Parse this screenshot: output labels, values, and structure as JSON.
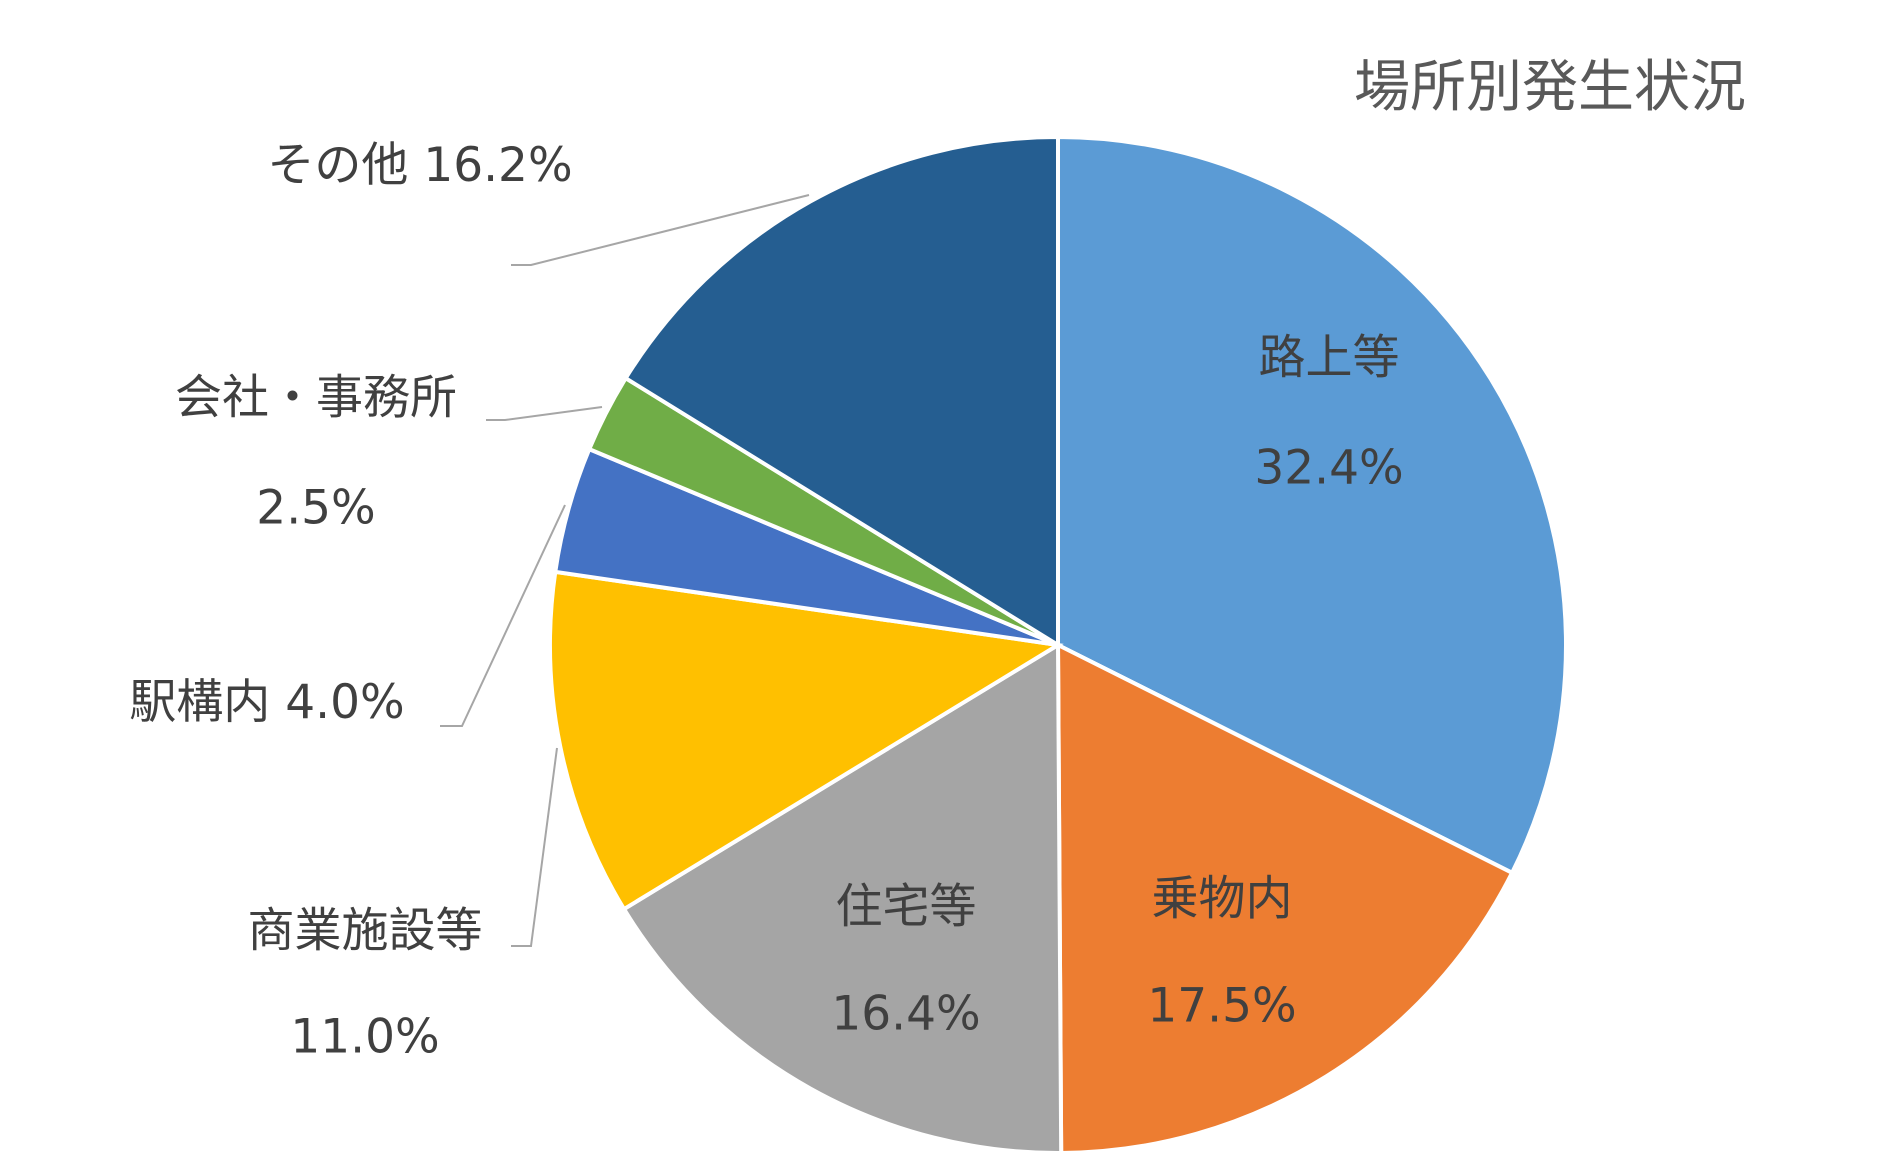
{
  "chart_data": {
    "type": "pie",
    "title": "場所別発生状況",
    "categories": [
      "路上等",
      "乗物内",
      "住宅等",
      "商業施設等",
      "駅構内",
      "会社・事務所",
      "その他"
    ],
    "values": [
      32.4,
      17.5,
      16.4,
      11.0,
      4.0,
      2.5,
      16.2
    ],
    "value_labels": [
      "32.4%",
      "17.5%",
      "16.4%",
      "11.0%",
      "4.0%",
      "2.5%",
      "16.2%"
    ],
    "colors": [
      "#5b9bd5",
      "#ed7d31",
      "#a5a5a5",
      "#ffc000",
      "#4472c4",
      "#70ad47",
      "#255e91"
    ]
  }
}
